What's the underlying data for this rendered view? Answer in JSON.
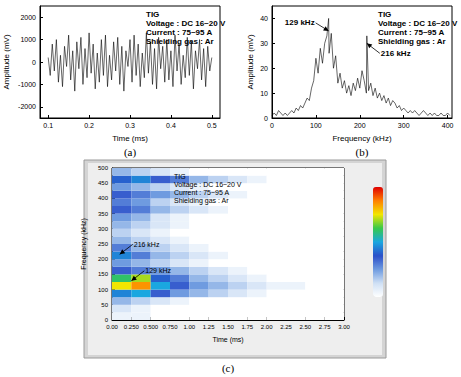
{
  "chart_data": [
    {
      "type": "line",
      "panel": "(a)",
      "x_label": "Time (ms)",
      "y_label": "Amplitude (mV)",
      "info": [
        "TIG",
        "Voltage : DC 16~20 V",
        "Current : 75~95 A",
        "Shielding gas : Ar"
      ],
      "color": "#000000",
      "grid": false,
      "xlim": [
        0.08,
        0.52
      ],
      "ylim": [
        -2500,
        2500
      ],
      "xticks": [
        0.1,
        0.2,
        0.3,
        0.4,
        0.5
      ],
      "yticks": [
        -2000,
        -1000,
        0,
        1000,
        2000
      ],
      "x": [
        0.1,
        0.105,
        0.11,
        0.115,
        0.12,
        0.125,
        0.13,
        0.135,
        0.14,
        0.145,
        0.15,
        0.155,
        0.16,
        0.165,
        0.17,
        0.175,
        0.18,
        0.185,
        0.19,
        0.195,
        0.2,
        0.205,
        0.21,
        0.215,
        0.22,
        0.225,
        0.23,
        0.235,
        0.24,
        0.245,
        0.25,
        0.255,
        0.26,
        0.265,
        0.27,
        0.275,
        0.28,
        0.285,
        0.29,
        0.295,
        0.3,
        0.305,
        0.31,
        0.315,
        0.32,
        0.325,
        0.33,
        0.335,
        0.34,
        0.345,
        0.35,
        0.355,
        0.36,
        0.365,
        0.37,
        0.375,
        0.38,
        0.385,
        0.39,
        0.395,
        0.4,
        0.405,
        0.41,
        0.415,
        0.42,
        0.425,
        0.43,
        0.435,
        0.44,
        0.445,
        0.45,
        0.455,
        0.46,
        0.465,
        0.47,
        0.475,
        0.48,
        0.485,
        0.49,
        0.495,
        0.5
      ],
      "values": [
        200,
        -600,
        800,
        -400,
        1000,
        -900,
        300,
        -1100,
        700,
        -200,
        1200,
        -800,
        500,
        -1300,
        900,
        -300,
        1100,
        -1000,
        600,
        -700,
        1300,
        -500,
        800,
        -1200,
        400,
        -900,
        1000,
        -600,
        1200,
        -1100,
        300,
        -800,
        900,
        -400,
        1100,
        -1000,
        700,
        -1300,
        500,
        -200,
        1000,
        -900,
        1200,
        -600,
        800,
        -1100,
        400,
        -700,
        1300,
        -500,
        900,
        -1000,
        600,
        -1200,
        1100,
        -300,
        700,
        -900,
        1000,
        -800,
        500,
        -1100,
        1200,
        -400,
        800,
        -1000,
        300,
        -700,
        1100,
        -600,
        900,
        -1200,
        500,
        -300,
        1000,
        -800,
        600,
        -1100,
        700,
        -400,
        200
      ]
    },
    {
      "type": "line",
      "panel": "(b)",
      "x_label": "Frequency (kHz)",
      "y_label": "Amplitude (mV)",
      "info": [
        "TIG",
        "Voltage : DC 16~20 V",
        "Current : 75~95 A",
        "Shielding gas : Ar"
      ],
      "color": "#000000",
      "grid": false,
      "xlim": [
        0,
        410
      ],
      "ylim": [
        0,
        45
      ],
      "xticks": [
        0,
        100,
        200,
        300,
        400
      ],
      "yticks": [
        0,
        10,
        20,
        30,
        40
      ],
      "x": [
        0,
        5,
        10,
        15,
        20,
        25,
        30,
        35,
        40,
        45,
        50,
        55,
        60,
        65,
        70,
        75,
        80,
        85,
        90,
        95,
        100,
        105,
        110,
        115,
        120,
        125,
        129,
        130,
        135,
        140,
        145,
        150,
        155,
        160,
        165,
        170,
        175,
        180,
        185,
        190,
        195,
        200,
        205,
        210,
        215,
        216,
        220,
        225,
        230,
        235,
        240,
        245,
        250,
        255,
        260,
        265,
        270,
        275,
        280,
        285,
        290,
        295,
        300,
        305,
        310,
        315,
        320,
        325,
        330,
        335,
        340,
        345,
        350,
        355,
        360,
        365,
        370,
        375,
        380,
        385,
        390,
        395,
        400,
        405
      ],
      "values": [
        1,
        2,
        1,
        3,
        2,
        1,
        2,
        1,
        2,
        3,
        2,
        4,
        3,
        5,
        4,
        6,
        8,
        7,
        12,
        15,
        24,
        18,
        28,
        22,
        30,
        33,
        40,
        26,
        34,
        20,
        25,
        14,
        18,
        12,
        15,
        10,
        13,
        9,
        14,
        11,
        16,
        12,
        19,
        15,
        10,
        33,
        11,
        14,
        9,
        12,
        8,
        10,
        7,
        9,
        6,
        8,
        5,
        7,
        6,
        4,
        5,
        3,
        4,
        3,
        2,
        3,
        2,
        3,
        2,
        1,
        2,
        3,
        2,
        1,
        2,
        1,
        2,
        1,
        1,
        2,
        1,
        1,
        2,
        1
      ],
      "annotations": [
        {
          "text": "129 kHz",
          "x": 129,
          "y": 35
        },
        {
          "text": "216 kHz",
          "x": 216,
          "y": 30
        }
      ]
    },
    {
      "type": "heatmap",
      "panel": "(c)",
      "x_label": "Time (ms)",
      "y_label": "Frequency (kHz)",
      "info": [
        "TIG",
        "Voltage : DC 16~20 V",
        "Current : 75~95 A",
        "Shielding gas : Ar"
      ],
      "grid": false,
      "xlim": [
        0,
        3
      ],
      "ylim": [
        0,
        500
      ],
      "xticks": [
        {
          "value": 0,
          "label": "0.00"
        },
        {
          "value": 0.25,
          "label": "0.250"
        },
        {
          "value": 0.5,
          "label": "0.500"
        },
        {
          "value": 0.75,
          "label": "0.750"
        },
        {
          "value": 1,
          "label": "1.00"
        },
        1.25,
        {
          "value": 1.5,
          "label": "1.50"
        },
        1.75,
        {
          "value": 2,
          "label": "2.00"
        },
        2.25,
        {
          "value": 2.5,
          "label": "2.50"
        },
        2.75,
        {
          "value": 3,
          "label": "3.00"
        }
      ],
      "yticks": [
        0,
        50,
        100,
        150,
        200,
        250,
        300,
        350,
        400,
        450,
        500
      ],
      "x_bins": [
        0,
        0.25,
        0.5,
        0.75,
        1,
        1.25,
        1.5,
        1.75,
        2,
        2.25,
        2.5,
        2.75,
        3
      ],
      "y_bins": [
        0,
        25,
        50,
        75,
        100,
        125,
        150,
        175,
        200,
        225,
        250,
        275,
        300,
        325,
        350,
        375,
        400,
        425,
        450,
        475,
        500
      ],
      "cells": [
        [
          0.05,
          0.05,
          0,
          0,
          0,
          0,
          0,
          0,
          0,
          0,
          0,
          0
        ],
        [
          0.1,
          0.05,
          0,
          0,
          0,
          0,
          0,
          0,
          0,
          0,
          0,
          0
        ],
        [
          0.2,
          0.15,
          0.1,
          0.05,
          0,
          0,
          0,
          0,
          0,
          0,
          0,
          0
        ],
        [
          0.45,
          0.5,
          0.35,
          0.25,
          0.2,
          0.15,
          0.1,
          0.05,
          0,
          0,
          0,
          0
        ],
        [
          0.75,
          0.85,
          0.5,
          0.35,
          0.25,
          0.2,
          0.15,
          0.1,
          0.05,
          0.05,
          0,
          0
        ],
        [
          0.6,
          0.7,
          0.4,
          0.3,
          0.2,
          0.15,
          0.1,
          0.05,
          0,
          0,
          0,
          0
        ],
        [
          0.35,
          0.3,
          0.25,
          0.2,
          0.15,
          0.1,
          0.05,
          0,
          0,
          0,
          0,
          0
        ],
        [
          0.25,
          0.2,
          0.15,
          0.1,
          0.05,
          0,
          0,
          0,
          0,
          0,
          0,
          0
        ],
        [
          0.45,
          0.3,
          0.2,
          0.15,
          0.1,
          0.05,
          0,
          0,
          0,
          0,
          0,
          0
        ],
        [
          0.3,
          0.2,
          0.15,
          0.1,
          0.05,
          0,
          0,
          0,
          0,
          0,
          0,
          0
        ],
        [
          0.2,
          0.15,
          0.1,
          0.05,
          0,
          0,
          0,
          0,
          0,
          0,
          0,
          0
        ],
        [
          0.15,
          0.1,
          0.05,
          0,
          0,
          0,
          0,
          0,
          0,
          0,
          0,
          0
        ],
        [
          0.2,
          0.15,
          0.1,
          0.05,
          0,
          0,
          0,
          0,
          0,
          0,
          0,
          0
        ],
        [
          0.25,
          0.2,
          0.1,
          0.05,
          0,
          0,
          0,
          0,
          0,
          0,
          0,
          0
        ],
        [
          0.35,
          0.3,
          0.2,
          0.15,
          0.1,
          0.05,
          0,
          0,
          0,
          0,
          0,
          0
        ],
        [
          0.3,
          0.25,
          0.15,
          0.1,
          0.05,
          0,
          0,
          0,
          0,
          0,
          0,
          0
        ],
        [
          0.35,
          0.3,
          0.25,
          0.2,
          0.15,
          0.1,
          0.05,
          0,
          0,
          0,
          0,
          0
        ],
        [
          0.25,
          0.2,
          0.15,
          0.1,
          0.05,
          0,
          0,
          0,
          0,
          0,
          0,
          0
        ],
        [
          0.4,
          0.45,
          0.35,
          0.3,
          0.2,
          0.15,
          0.1,
          0.05,
          0,
          0,
          0,
          0
        ],
        [
          0.2,
          0.15,
          0.1,
          0.05,
          0,
          0,
          0,
          0,
          0,
          0,
          0,
          0
        ]
      ],
      "colorbar": {
        "range": [
          0,
          1
        ]
      },
      "annotations": [
        {
          "text": "216 kHz",
          "x": 0.1,
          "y": 216
        },
        {
          "text": "129 kHz",
          "x": 0.25,
          "y": 129
        }
      ]
    }
  ]
}
